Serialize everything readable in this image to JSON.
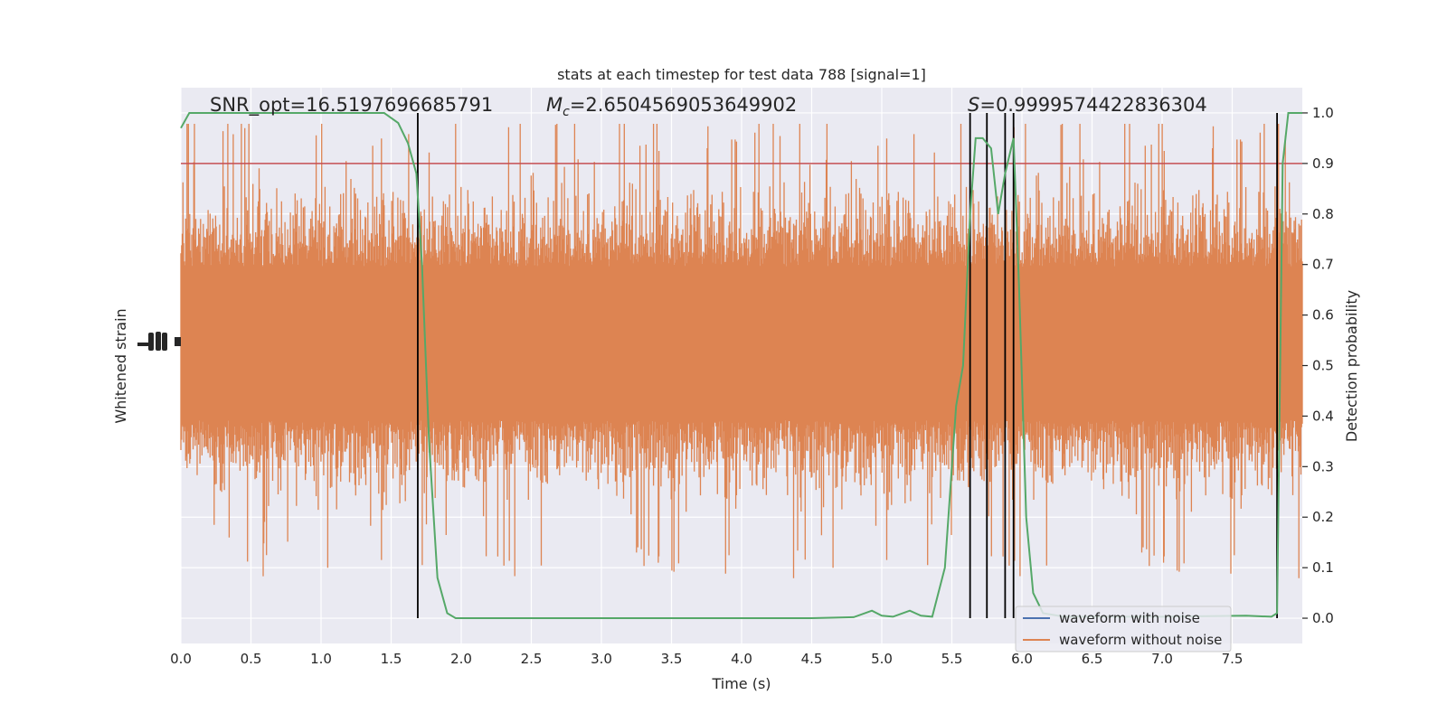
{
  "chart_data": {
    "type": "line",
    "title": "stats at each timestep for test data 788 [signal=1]",
    "xlabel": "Time (s)",
    "ylabel_left": "Whitened strain",
    "ylabel_right": "Detection probability",
    "xlim": [
      0.0,
      8.0
    ],
    "ylim_right": [
      -0.05,
      1.05
    ],
    "x_ticks": [
      "0.0",
      "0.5",
      "1.0",
      "1.5",
      "2.0",
      "2.5",
      "3.0",
      "3.5",
      "4.0",
      "4.5",
      "5.0",
      "5.5",
      "6.0",
      "6.5",
      "7.0",
      "7.5"
    ],
    "right_ticks": [
      "0.0",
      "0.1",
      "0.2",
      "0.3",
      "0.4",
      "0.5",
      "0.6",
      "0.7",
      "0.8",
      "0.9",
      "1.0"
    ],
    "grid": true,
    "legend_position": "lower-right",
    "annotations": {
      "snr": "SNR_opt=16.5197696685791",
      "mc_symbol": "M",
      "mc_subscript": "c",
      "mc_value": "=2.6504569053649902",
      "s_symbol": "S",
      "s_value": "=0.9999574422836304"
    },
    "threshold": 0.9,
    "vertical_lines_x": [
      1.69,
      5.63,
      5.75,
      5.88,
      5.94,
      7.82
    ],
    "series": [
      {
        "name": "waveform with noise",
        "color": "#4c72b0",
        "note_visible": "hidden beneath orange trace"
      },
      {
        "name": "waveform without noise",
        "color": "#dd8452"
      },
      {
        "color": "#55a868",
        "x": [
          0.0,
          0.06,
          0.12,
          0.5,
          1.0,
          1.45,
          1.55,
          1.62,
          1.68,
          1.72,
          1.77,
          1.83,
          1.9,
          1.96,
          2.1,
          2.5,
          3.0,
          3.5,
          4.0,
          4.5,
          4.8,
          4.93,
          5.0,
          5.08,
          5.2,
          5.28,
          5.36,
          5.45,
          5.53,
          5.58,
          5.63,
          5.67,
          5.72,
          5.78,
          5.83,
          5.88,
          5.94,
          5.98,
          6.03,
          6.08,
          6.15,
          6.3,
          7.0,
          7.6,
          7.78,
          7.82,
          7.86,
          7.9,
          7.95,
          8.0
        ],
        "y": [
          0.97,
          1.0,
          1.0,
          1.0,
          1.0,
          1.0,
          0.98,
          0.94,
          0.88,
          0.7,
          0.35,
          0.08,
          0.01,
          0.0,
          0.0,
          0.0,
          0.0,
          0.0,
          0.0,
          0.0,
          0.002,
          0.015,
          0.005,
          0.003,
          0.015,
          0.005,
          0.003,
          0.1,
          0.42,
          0.5,
          0.8,
          0.95,
          0.95,
          0.93,
          0.8,
          0.88,
          0.95,
          0.65,
          0.2,
          0.05,
          0.01,
          0.003,
          0.003,
          0.005,
          0.003,
          0.01,
          0.9,
          1.0,
          1.0,
          1.0
        ]
      }
    ]
  },
  "colors": {
    "plot_bg": "#eaeaf2",
    "grid": "#ffffff",
    "threshold": "#c44e52",
    "vline": "#000000",
    "text": "#262626"
  }
}
